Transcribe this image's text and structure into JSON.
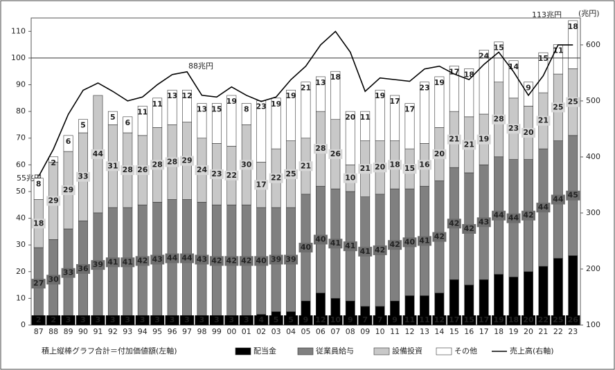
{
  "chart_data": {
    "type": "stacked-bar-line",
    "note": "積上縦棒グラフ合計＝付加価値額(左軸)",
    "y2_unit": "(兆円)",
    "annotations": [
      "55兆円",
      "88兆円",
      "113兆円"
    ],
    "categories": [
      "87",
      "88",
      "89",
      "90",
      "91",
      "92",
      "93",
      "94",
      "95",
      "96",
      "97",
      "98",
      "99",
      "00",
      "01",
      "02",
      "03",
      "04",
      "05",
      "06",
      "07",
      "08",
      "09",
      "10",
      "11",
      "12",
      "13",
      "14",
      "15",
      "16",
      "17",
      "18",
      "19",
      "20",
      "21",
      "22",
      "23"
    ],
    "series": [
      {
        "name": "配当金",
        "color": "#000000",
        "values": [
          2,
          2,
          3,
          3,
          3,
          3,
          3,
          3,
          3,
          3,
          3,
          3,
          3,
          3,
          3,
          4,
          5,
          5,
          9,
          12,
          10,
          9,
          7,
          7,
          9,
          11,
          11,
          12,
          17,
          15,
          17,
          19,
          18,
          20,
          22,
          25,
          26
        ]
      },
      {
        "name": "従業員給与",
        "color": "#808080",
        "values": [
          27,
          30,
          33,
          36,
          39,
          41,
          41,
          42,
          43,
          44,
          44,
          43,
          42,
          42,
          42,
          40,
          39,
          39,
          40,
          40,
          41,
          41,
          41,
          42,
          42,
          40,
          41,
          42,
          42,
          42,
          43,
          44,
          44,
          42,
          44,
          44,
          45
        ]
      },
      {
        "name": "設備投資",
        "color": "#c8c8c8",
        "values": [
          18,
          29,
          29,
          33,
          44,
          31,
          28,
          26,
          28,
          28,
          29,
          24,
          23,
          22,
          30,
          17,
          22,
          25,
          21,
          28,
          26,
          10,
          21,
          20,
          18,
          15,
          16,
          20,
          21,
          21,
          19,
          28,
          23,
          20,
          21,
          25,
          25
        ]
      },
      {
        "name": "その他",
        "color": "#ffffff",
        "values": [
          8,
          2,
          6,
          5,
          0,
          5,
          6,
          11,
          11,
          13,
          12,
          13,
          15,
          19,
          8,
          23,
          19,
          19,
          21,
          13,
          18,
          20,
          11,
          19,
          17,
          17,
          23,
          19,
          17,
          18,
          24,
          15,
          14,
          9,
          15,
          11,
          18
        ]
      },
      {
        "name": "売上高(右軸)",
        "color": "#000000",
        "axis": "y2",
        "values": [
          365,
          414,
          476,
          519,
          532,
          517,
          500,
          507,
          529,
          547,
          552,
          510,
          507,
          525,
          510,
          499,
          507,
          538,
          562,
          600,
          624,
          587,
          517,
          541,
          538,
          535,
          557,
          562,
          548,
          538,
          565,
          587,
          552,
          510,
          545,
          600,
          600
        ]
      }
    ],
    "reference_line": 100,
    "ylim": [
      0,
      115
    ],
    "yticks": [
      0,
      10,
      20,
      30,
      40,
      50,
      60,
      70,
      80,
      90,
      100,
      110
    ],
    "y2lim": [
      100,
      648
    ],
    "y2ticks": [
      100,
      200,
      300,
      400,
      500,
      600
    ]
  }
}
